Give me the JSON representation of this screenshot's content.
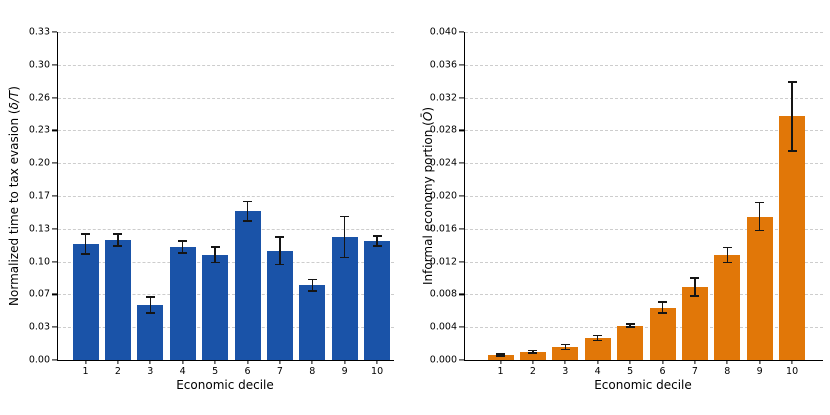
{
  "figure": {
    "background": "#ffffff",
    "grid_color": "#cdcdcd",
    "axis_color": "#000000",
    "error_bar_color": "#151515"
  },
  "chart_data": [
    {
      "type": "bar",
      "title": "",
      "xlabel": "Economic decile",
      "ylabel": "Normalized time to tax evasion (δ/T)",
      "ylabel_prefix": "Normalized time to tax evasion (",
      "ylabel_math": "δ/T",
      "ylabel_suffix": ")",
      "categories": [
        "1",
        "2",
        "3",
        "4",
        "5",
        "6",
        "7",
        "8",
        "9",
        "10"
      ],
      "values": [
        0.118,
        0.122,
        0.056,
        0.115,
        0.107,
        0.151,
        0.111,
        0.076,
        0.125,
        0.121
      ],
      "errors": [
        0.01,
        0.006,
        0.008,
        0.006,
        0.008,
        0.01,
        0.014,
        0.006,
        0.021,
        0.005
      ],
      "bar_color": "#1a53a8",
      "ylim": [
        0,
        0.33333
      ],
      "ytick_labels": [
        "0.00",
        "0.03",
        "0.07",
        "0.10",
        "0.13",
        "0.17",
        "0.20",
        "0.23",
        "0.26",
        "0.30",
        "0.33"
      ],
      "grid": "horizontal-dashed",
      "legend": "none"
    },
    {
      "type": "bar",
      "title": "",
      "xlabel": "Economic decile",
      "ylabel": "Informal economy portion (Ō)",
      "ylabel_prefix": "Informal economy portion (",
      "ylabel_math": "Ō",
      "ylabel_suffix": ")",
      "categories": [
        "1",
        "2",
        "3",
        "4",
        "5",
        "6",
        "7",
        "8",
        "9",
        "10"
      ],
      "values": [
        0.0006,
        0.001,
        0.0016,
        0.0027,
        0.0042,
        0.0064,
        0.0089,
        0.0128,
        0.0175,
        0.0297
      ],
      "errors": [
        0.00012,
        0.00015,
        0.0003,
        0.0003,
        0.0002,
        0.0007,
        0.0011,
        0.0009,
        0.0017,
        0.0042
      ],
      "bar_color": "#e17708",
      "ylim": [
        0,
        0.04
      ],
      "ytick_labels": [
        "0.000",
        "0.004",
        "0.008",
        "0.012",
        "0.016",
        "0.020",
        "0.024",
        "0.028",
        "0.032",
        "0.036",
        "0.040"
      ],
      "grid": "horizontal-dashed",
      "legend": "none"
    }
  ]
}
